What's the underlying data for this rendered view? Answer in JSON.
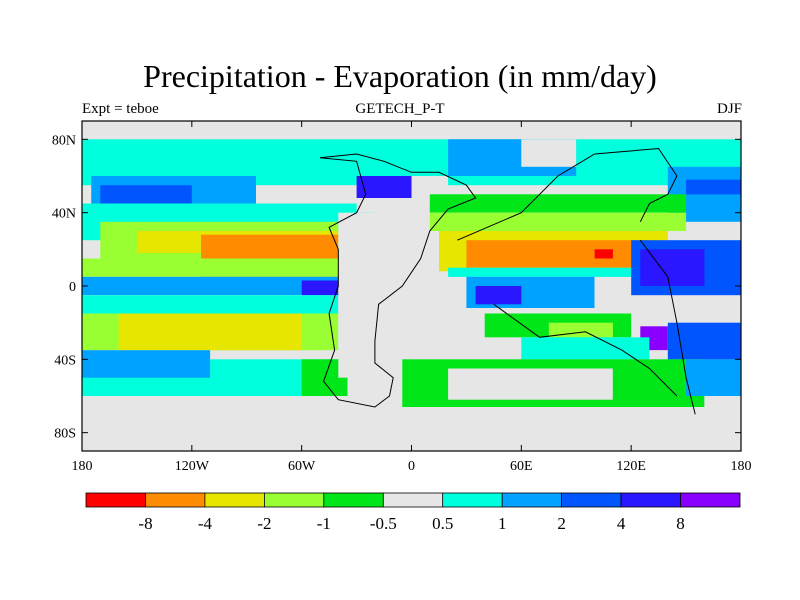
{
  "chart_data": {
    "type": "heatmap",
    "title": "Precipitation - Evaporation (in mm/day)",
    "subtitle_left": "Expt = teboe",
    "subtitle_center": "GETECH_P-T",
    "subtitle_right": "DJF",
    "x_ticks": [
      "180",
      "120W",
      "60W",
      "0",
      "60E",
      "120E",
      "180"
    ],
    "y_ticks": [
      "80N",
      "40N",
      "0",
      "40S",
      "80S"
    ],
    "x_tick_values": [
      -180,
      -120,
      -60,
      0,
      60,
      120,
      180
    ],
    "y_tick_values": [
      80,
      40,
      0,
      -40,
      -80
    ],
    "xlim": [
      -180,
      180
    ],
    "ylim": [
      -90,
      90
    ],
    "levels": [
      "-8",
      "-4",
      "-2",
      "-1",
      "-0.5",
      "0.5",
      "1",
      "2",
      "4",
      "8"
    ],
    "colors": [
      "#ff0000",
      "#ff8c00",
      "#e6e600",
      "#99ff33",
      "#00e619",
      "#e6e6e6",
      "#00ffdd",
      "#00a2ff",
      "#0055ff",
      "#2a16ff",
      "#8a00ff"
    ],
    "regions": [
      {
        "category": 5,
        "x0": -180,
        "x1": 180,
        "y0": -90,
        "y1": 90
      },
      {
        "category": 6,
        "x0": -180,
        "x1": 180,
        "y0": 55,
        "y1": 82
      },
      {
        "category": 5,
        "x0": -180,
        "x1": 180,
        "y0": 80,
        "y1": 90
      },
      {
        "category": 7,
        "x0": -175,
        "x1": -85,
        "y0": 40,
        "y1": 60
      },
      {
        "category": 8,
        "x0": -170,
        "x1": -120,
        "y0": 45,
        "y1": 55
      },
      {
        "category": 7,
        "x0": 140,
        "x1": 180,
        "y0": 35,
        "y1": 65
      },
      {
        "category": 8,
        "x0": 150,
        "x1": 180,
        "y0": 50,
        "y1": 58
      },
      {
        "category": 6,
        "x0": -180,
        "x1": -20,
        "y0": 25,
        "y1": 45
      },
      {
        "category": 3,
        "x0": -170,
        "x1": -40,
        "y0": 15,
        "y1": 35
      },
      {
        "category": 2,
        "x0": -150,
        "x1": -40,
        "y0": 18,
        "y1": 30
      },
      {
        "category": 1,
        "x0": -115,
        "x1": -40,
        "y0": 5,
        "y1": 28
      },
      {
        "category": 3,
        "x0": -180,
        "x1": -40,
        "y0": 5,
        "y1": 15
      },
      {
        "category": 7,
        "x0": -180,
        "x1": -40,
        "y0": -5,
        "y1": 5
      },
      {
        "category": 9,
        "x0": -60,
        "x1": -40,
        "y0": -5,
        "y1": 3
      },
      {
        "category": 6,
        "x0": -180,
        "x1": -40,
        "y0": -15,
        "y1": -5
      },
      {
        "category": 3,
        "x0": -180,
        "x1": -40,
        "y0": -35,
        "y1": -15
      },
      {
        "category": 2,
        "x0": -160,
        "x1": -60,
        "y0": -35,
        "y1": -15
      },
      {
        "category": 6,
        "x0": -180,
        "x1": -40,
        "y0": -60,
        "y1": -40
      },
      {
        "category": 7,
        "x0": -180,
        "x1": -110,
        "y0": -50,
        "y1": -35
      },
      {
        "category": 4,
        "x0": -60,
        "x1": -35,
        "y0": -60,
        "y1": -40
      },
      {
        "category": 5,
        "x0": -40,
        "x1": 15,
        "y0": -50,
        "y1": 40
      },
      {
        "category": 5,
        "x0": -30,
        "x1": 20,
        "y0": 40,
        "y1": 60
      },
      {
        "category": 9,
        "x0": -30,
        "x1": 0,
        "y0": 48,
        "y1": 60
      },
      {
        "category": 7,
        "x0": 20,
        "x1": 90,
        "y0": 60,
        "y1": 80
      },
      {
        "category": 5,
        "x0": 60,
        "x1": 90,
        "y0": 65,
        "y1": 80
      },
      {
        "category": 4,
        "x0": 10,
        "x1": 150,
        "y0": 40,
        "y1": 50
      },
      {
        "category": 3,
        "x0": 10,
        "x1": 150,
        "y0": 30,
        "y1": 40
      },
      {
        "category": 2,
        "x0": 15,
        "x1": 140,
        "y0": 8,
        "y1": 30
      },
      {
        "category": 1,
        "x0": 30,
        "x1": 130,
        "y0": 10,
        "y1": 25
      },
      {
        "category": 0,
        "x0": 100,
        "x1": 110,
        "y0": 15,
        "y1": 20
      },
      {
        "category": 6,
        "x0": 20,
        "x1": 140,
        "y0": 5,
        "y1": 10
      },
      {
        "category": 7,
        "x0": 30,
        "x1": 100,
        "y0": -12,
        "y1": 5
      },
      {
        "category": 9,
        "x0": 35,
        "x1": 60,
        "y0": -10,
        "y1": 0
      },
      {
        "category": 8,
        "x0": 120,
        "x1": 180,
        "y0": -5,
        "y1": 25
      },
      {
        "category": 9,
        "x0": 125,
        "x1": 160,
        "y0": 0,
        "y1": 20
      },
      {
        "category": 8,
        "x0": 140,
        "x1": 180,
        "y0": -40,
        "y1": -20
      },
      {
        "category": 10,
        "x0": 125,
        "x1": 140,
        "y0": -35,
        "y1": -22
      },
      {
        "category": 4,
        "x0": 40,
        "x1": 120,
        "y0": -28,
        "y1": -15
      },
      {
        "category": 3,
        "x0": 75,
        "x1": 110,
        "y0": -30,
        "y1": -20
      },
      {
        "category": 6,
        "x0": 60,
        "x1": 130,
        "y0": -40,
        "y1": -28
      },
      {
        "category": 4,
        "x0": -5,
        "x1": 160,
        "y0": -68,
        "y1": -40
      },
      {
        "category": 5,
        "x0": 20,
        "x1": 110,
        "y0": -62,
        "y1": -45
      },
      {
        "category": 7,
        "x0": 150,
        "x1": 180,
        "y0": -60,
        "y1": -40
      },
      {
        "category": 5,
        "x0": -180,
        "x1": 180,
        "y0": -90,
        "y1": -66
      }
    ],
    "coastline": [
      [
        [
          -50,
          70
        ],
        [
          -30,
          68
        ],
        [
          -25,
          50
        ],
        [
          -30,
          40
        ],
        [
          -45,
          32
        ],
        [
          -40,
          20
        ],
        [
          -40,
          0
        ],
        [
          -45,
          -15
        ],
        [
          -42,
          -35
        ],
        [
          -48,
          -52
        ],
        [
          -40,
          -62
        ],
        [
          -20,
          -66
        ],
        [
          -12,
          -60
        ],
        [
          -10,
          -50
        ],
        [
          -20,
          -42
        ],
        [
          -20,
          -30
        ],
        [
          -18,
          -10
        ],
        [
          -5,
          0
        ],
        [
          5,
          15
        ],
        [
          10,
          30
        ],
        [
          20,
          42
        ],
        [
          35,
          48
        ],
        [
          30,
          55
        ],
        [
          15,
          62
        ],
        [
          0,
          62
        ],
        [
          -15,
          68
        ],
        [
          -30,
          72
        ],
        [
          -50,
          70
        ]
      ],
      [
        [
          25,
          25
        ],
        [
          60,
          40
        ],
        [
          80,
          60
        ],
        [
          100,
          72
        ],
        [
          135,
          75
        ],
        [
          145,
          60
        ],
        [
          140,
          50
        ],
        [
          130,
          45
        ],
        [
          125,
          35
        ]
      ],
      [
        [
          125,
          25
        ],
        [
          140,
          5
        ],
        [
          145,
          -20
        ],
        [
          150,
          -50
        ],
        [
          155,
          -70
        ]
      ],
      [
        [
          45,
          -10
        ],
        [
          70,
          -28
        ],
        [
          95,
          -25
        ],
        [
          115,
          -35
        ],
        [
          130,
          -45
        ],
        [
          145,
          -60
        ]
      ]
    ]
  }
}
